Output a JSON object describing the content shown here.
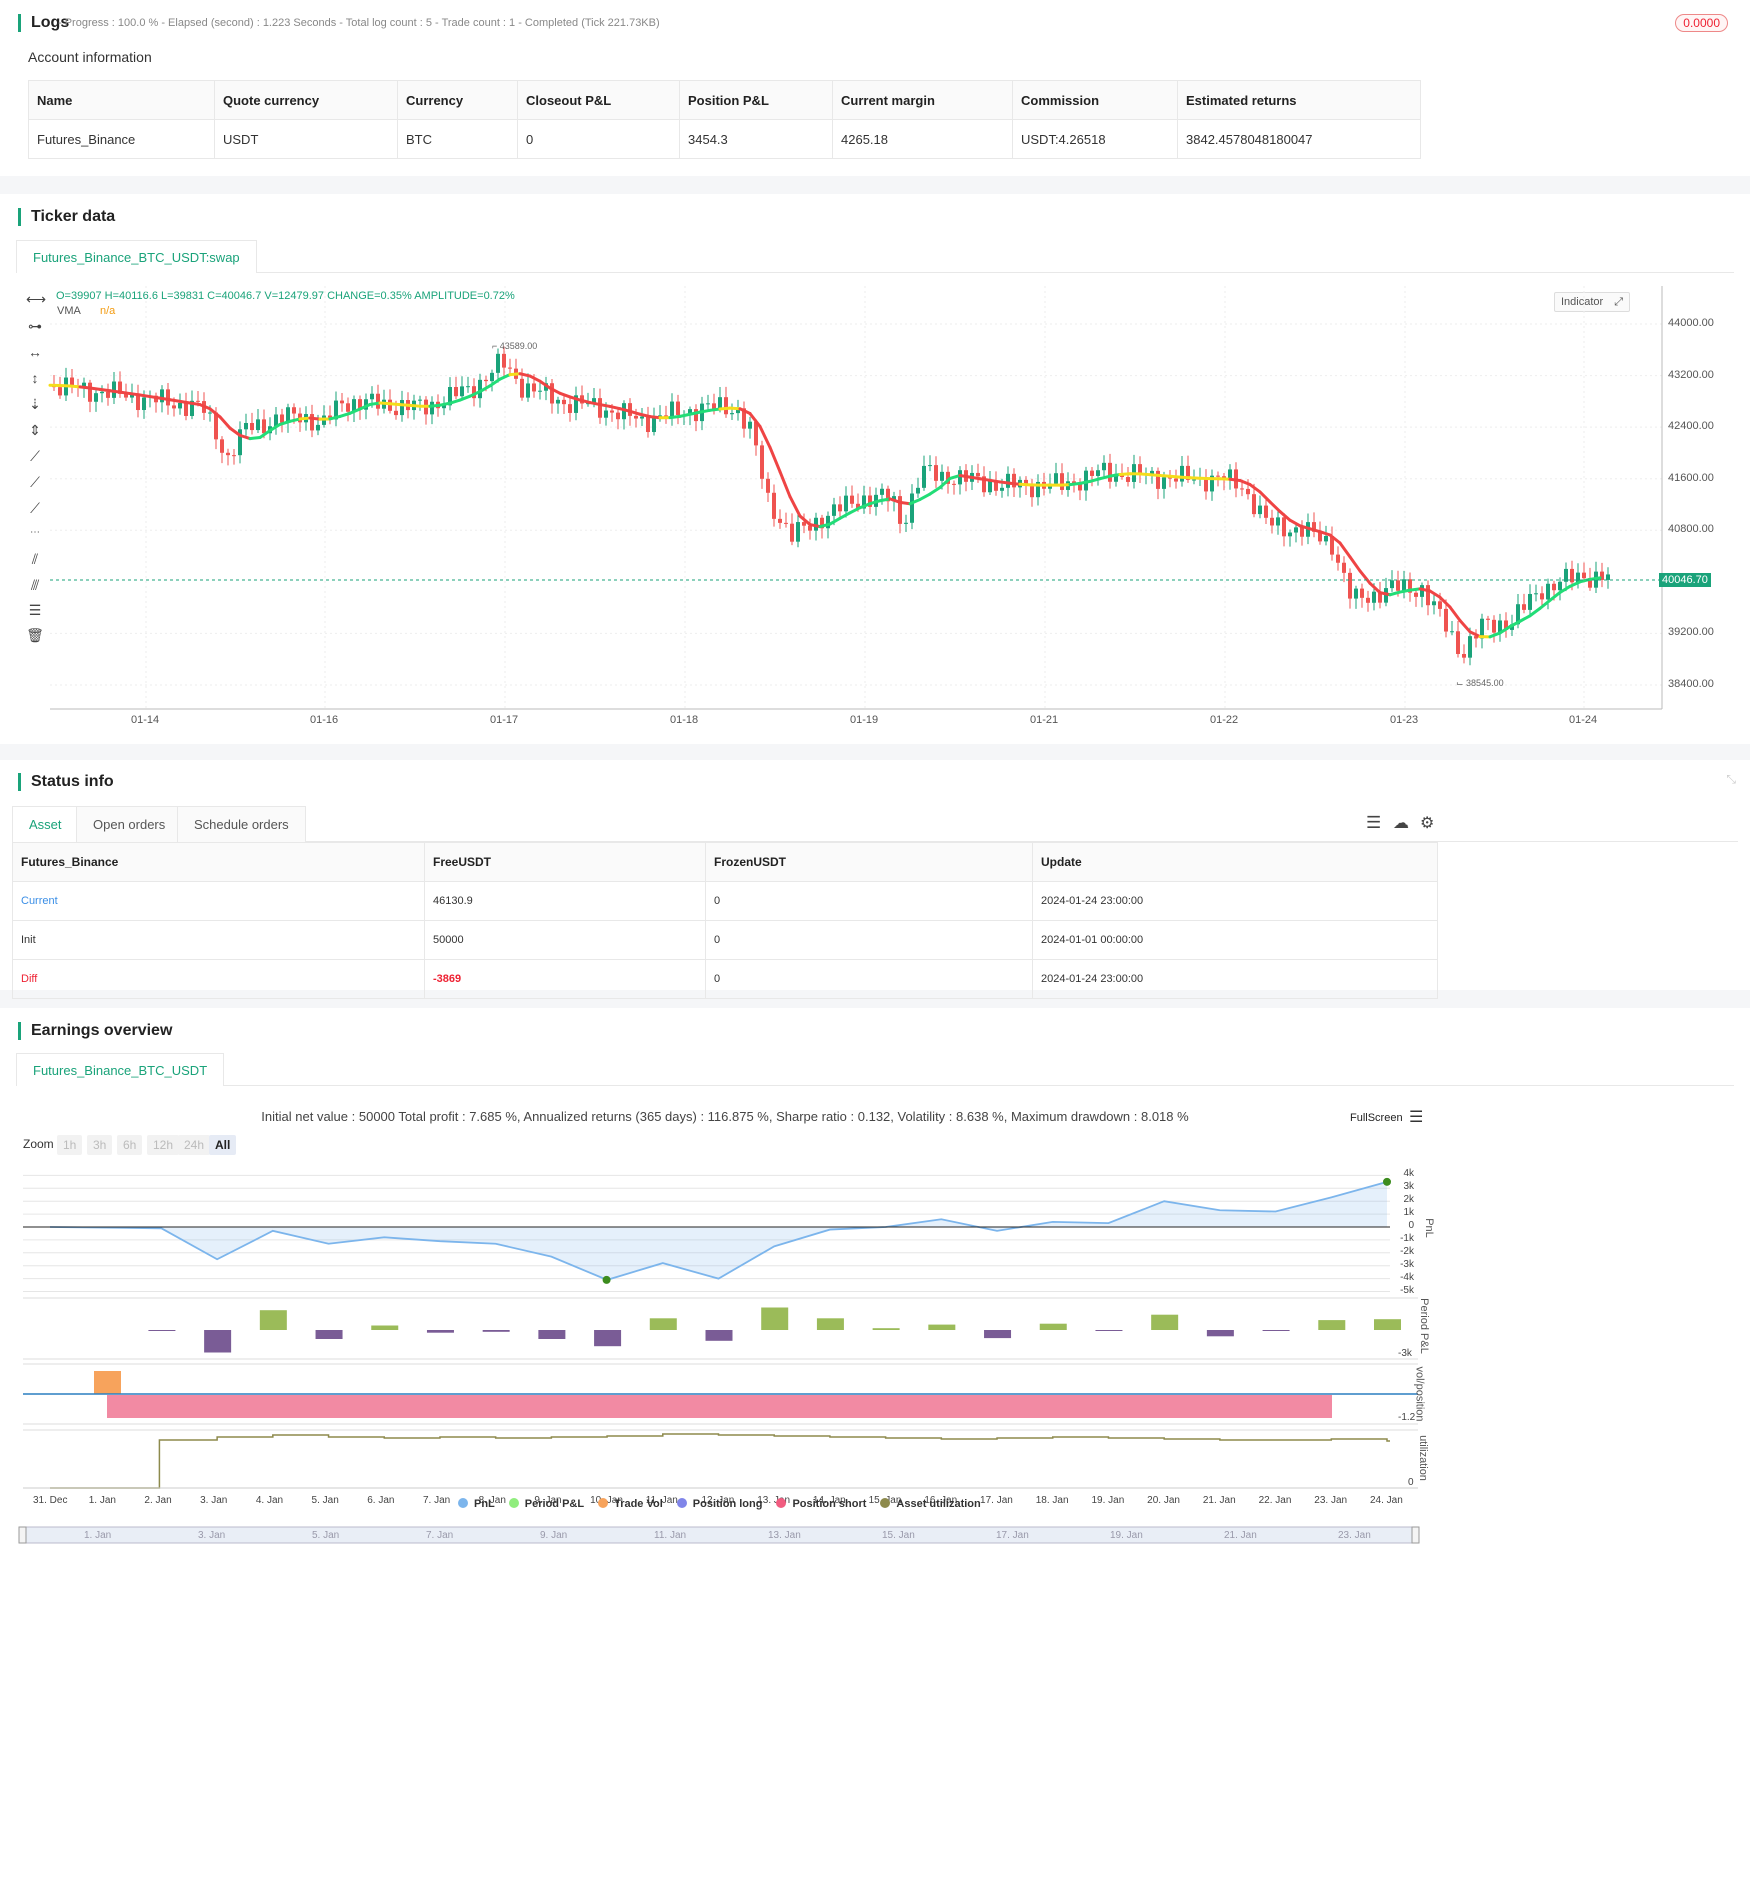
{
  "logs": {
    "title": "Logs",
    "progress": "- Progress : 100.0 % - Elapsed (second) : 1.223  Seconds - Total log count : 5 - Trade count : 1 - Completed (Tick 221.73KB)",
    "badge": "0.0000"
  },
  "account": {
    "title": "Account information",
    "headers": [
      "Name",
      "Quote currency",
      "Currency",
      "Closeout P&L",
      "Position P&L",
      "Current margin",
      "Commission",
      "Estimated returns"
    ],
    "row": [
      "Futures_Binance",
      "USDT",
      "BTC",
      "0",
      "3454.3",
      "4265.18",
      "USDT:4.26518",
      "3842.4578048180047"
    ]
  },
  "ticker": {
    "title": "Ticker data",
    "tab": "Futures_Binance_BTC_USDT:swap",
    "ohlc": "O=39907 H=40116.6 L=39831 C=40046.7 V=12479.97 CHANGE=0.35% AMPLITUDE=0.72%",
    "vma_label": "VMA",
    "vma_value": "n/a",
    "indicator_btn": "Indicator",
    "price_tag": "40046.70",
    "high_mark": "43589.00",
    "low_mark": "38545.00",
    "y_ticks": [
      "44000.00",
      "43200.00",
      "42400.00",
      "41600.00",
      "40800.00",
      "39200.00",
      "38400.00"
    ],
    "x_ticks": [
      "01-14",
      "01-16",
      "01-17",
      "01-18",
      "01-19",
      "01-21",
      "01-22",
      "01-23",
      "01-24"
    ]
  },
  "status": {
    "title": "Status info",
    "tabs": [
      "Asset",
      "Open orders",
      "Schedule orders"
    ],
    "headers": [
      "Futures_Binance",
      "FreeUSDT",
      "FrozenUSDT",
      "Update"
    ],
    "rows": [
      [
        "Current",
        "46130.9",
        "0",
        "2024-01-24 23:00:00"
      ],
      [
        "Init",
        "50000",
        "0",
        "2024-01-01 00:00:00"
      ],
      [
        "Diff",
        "-3869",
        "0",
        "2024-01-24 23:00:00"
      ]
    ]
  },
  "earnings": {
    "title": "Earnings overview",
    "tab": "Futures_Binance_BTC_USDT",
    "summary": "Initial net value : 50000 Total profit : 7.685 %, Annualized returns (365 days) : 116.875 %, Sharpe ratio : 0.132, Volatility : 8.638 %, Maximum drawdown : 8.018 %",
    "fullscreen": "FullScreen",
    "zoom_label": "Zoom",
    "zoom_opts": [
      "1h",
      "3h",
      "6h",
      "12h",
      "24h",
      "All"
    ],
    "pnl_ticks": [
      "4k",
      "3k",
      "2k",
      "1k",
      "0",
      "-1k",
      "-2k",
      "-3k",
      "-4k",
      "-5k"
    ],
    "period_tick": "-3k",
    "vol_tick": "-1.2",
    "util_tick": "0",
    "axis_titles": [
      "PnL",
      "Period P&L",
      "vol/position",
      "utilization"
    ],
    "x_dates": [
      "31. Dec",
      "1. Jan",
      "2. Jan",
      "3. Jan",
      "4. Jan",
      "5. Jan",
      "6. Jan",
      "7. Jan",
      "8. Jan",
      "9. Jan",
      "10. Jan",
      "11. Jan",
      "12. Jan",
      "13. Jan",
      "14. Jan",
      "15. Jan",
      "16. Jan",
      "17. Jan",
      "18. Jan",
      "19. Jan",
      "20. Jan",
      "21. Jan",
      "22. Jan",
      "23. Jan",
      "24. Jan"
    ],
    "nav_dates": [
      "1. Jan",
      "3. Jan",
      "5. Jan",
      "7. Jan",
      "9. Jan",
      "11. Jan",
      "13. Jan",
      "15. Jan",
      "17. Jan",
      "19. Jan",
      "21. Jan",
      "23. Jan"
    ],
    "legend": [
      {
        "name": "PnL",
        "color": "#7cb5ec"
      },
      {
        "name": "Period P&L",
        "color": "#90ed7d"
      },
      {
        "name": "Trade Vol",
        "color": "#f7a35c"
      },
      {
        "name": "Position long",
        "color": "#8085e9"
      },
      {
        "name": "Position short",
        "color": "#f15c80"
      },
      {
        "name": "Asset utilization",
        "color": "#8d8a4c"
      }
    ]
  },
  "chart_data": {
    "type": "line",
    "x": [
      "31. Dec",
      "1. Jan",
      "2. Jan",
      "3. Jan",
      "4. Jan",
      "5. Jan",
      "6. Jan",
      "7. Jan",
      "8. Jan",
      "9. Jan",
      "10. Jan",
      "11. Jan",
      "12. Jan",
      "13. Jan",
      "14. Jan",
      "15. Jan",
      "16. Jan",
      "17. Jan",
      "18. Jan",
      "19. Jan",
      "20. Jan",
      "21. Jan",
      "22. Jan",
      "23. Jan",
      "24. Jan"
    ],
    "series": [
      {
        "name": "PnL",
        "values": [
          0,
          -50,
          -100,
          -2500,
          -300,
          -1300,
          -800,
          -1100,
          -1300,
          -2300,
          -4100,
          -2800,
          -4000,
          -1500,
          -200,
          0,
          600,
          -300,
          400,
          300,
          2000,
          1300,
          1200,
          2300,
          3500
        ]
      },
      {
        "name": "Period P&L",
        "values": [
          0,
          0,
          -100,
          -2500,
          2200,
          -1000,
          500,
          -300,
          -200,
          -1000,
          -1800,
          1300,
          -1200,
          2500,
          1300,
          200,
          600,
          -900,
          700,
          -100,
          1700,
          -700,
          -100,
          1100,
          1200
        ]
      }
    ],
    "ylim": [
      -5000,
      4000
    ]
  }
}
